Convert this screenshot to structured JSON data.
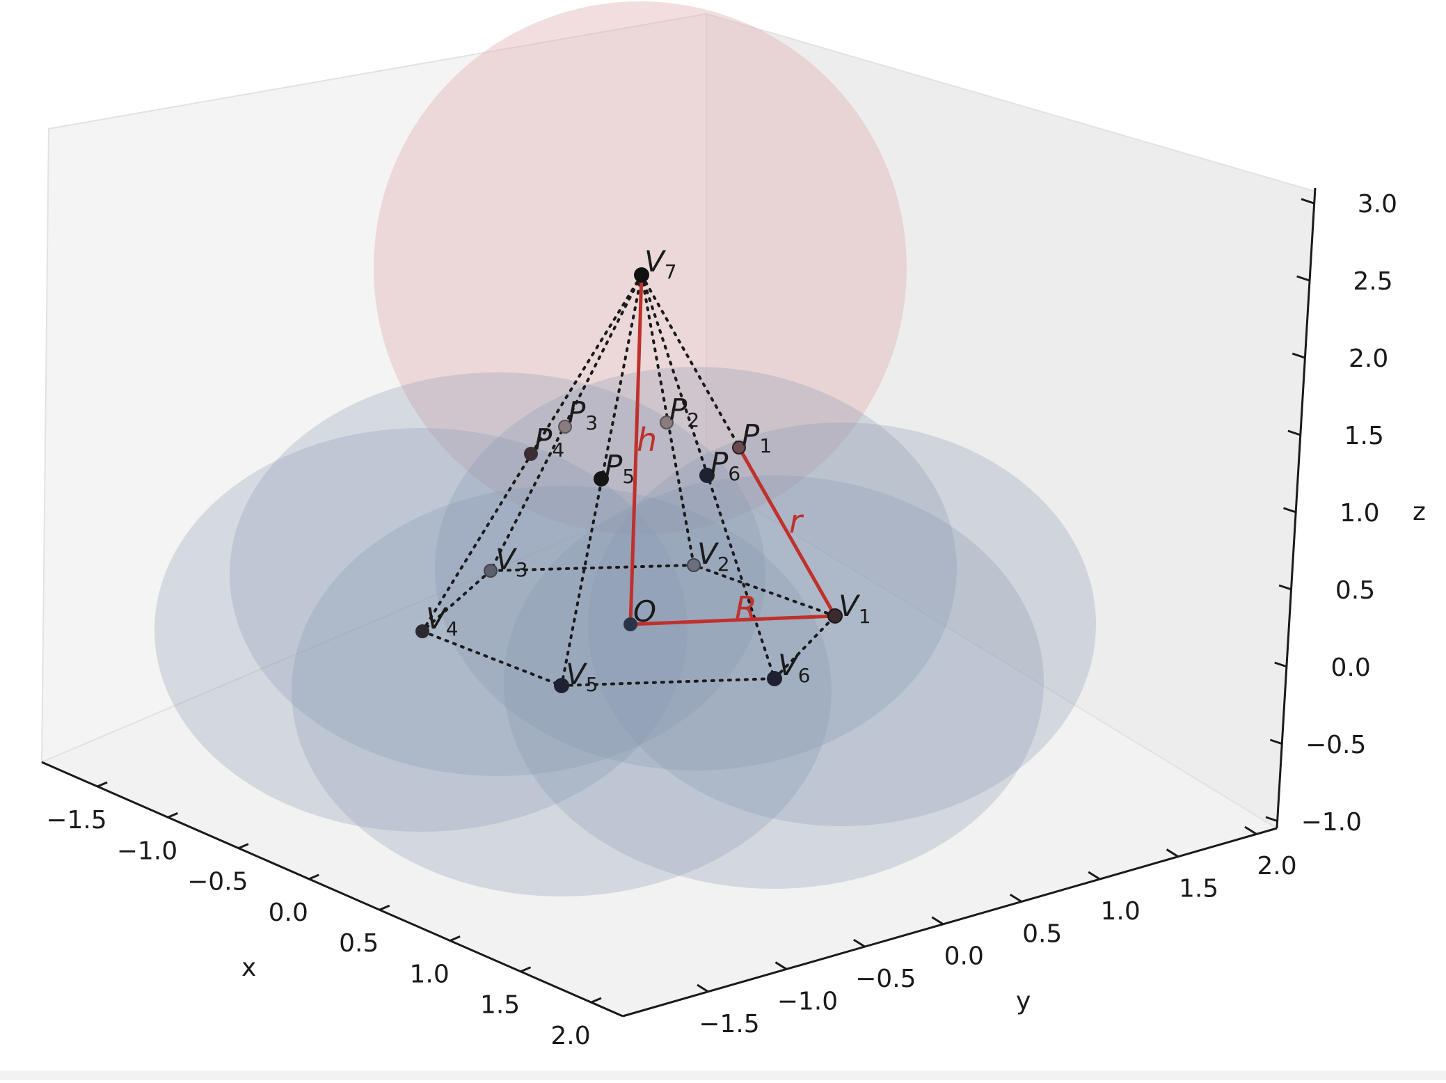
{
  "axes": {
    "x": {
      "title": "x",
      "ticks": [
        "−1.5",
        "−1.0",
        "−0.5",
        "0.0",
        "0.5",
        "1.0",
        "1.5",
        "2.0"
      ]
    },
    "y": {
      "title": "y",
      "ticks": [
        "−1.5",
        "−1.0",
        "−0.5",
        "0.0",
        "0.5",
        "1.0",
        "1.5",
        "2.0"
      ]
    },
    "z": {
      "title": "z",
      "ticks": [
        "−1.0",
        "−0.5",
        "0.0",
        "0.5",
        "1.0",
        "1.5",
        "2.0",
        "2.5",
        "3.0"
      ]
    }
  },
  "points": [
    {
      "id": "O",
      "main": "O",
      "sub": ""
    },
    {
      "id": "V1",
      "main": "V",
      "sub": "1"
    },
    {
      "id": "V2",
      "main": "V",
      "sub": "2"
    },
    {
      "id": "V3",
      "main": "V",
      "sub": "3"
    },
    {
      "id": "V4",
      "main": "V",
      "sub": "4"
    },
    {
      "id": "V5",
      "main": "V",
      "sub": "5"
    },
    {
      "id": "V6",
      "main": "V",
      "sub": "6"
    },
    {
      "id": "V7",
      "main": "V",
      "sub": "7"
    },
    {
      "id": "P1",
      "main": "P",
      "sub": "1"
    },
    {
      "id": "P2",
      "main": "P",
      "sub": "2"
    },
    {
      "id": "P3",
      "main": "P",
      "sub": "3"
    },
    {
      "id": "P4",
      "main": "P",
      "sub": "4"
    },
    {
      "id": "P5",
      "main": "P",
      "sub": "5"
    },
    {
      "id": "P6",
      "main": "P",
      "sub": "6"
    }
  ],
  "segment_labels": {
    "h": "h",
    "r": "r",
    "R": "R"
  },
  "colors": {
    "base_sphere": "#8496b0",
    "top_sphere": "#e3b5b5",
    "highlight": "#c0302c",
    "pane": "#ebebeb"
  }
}
